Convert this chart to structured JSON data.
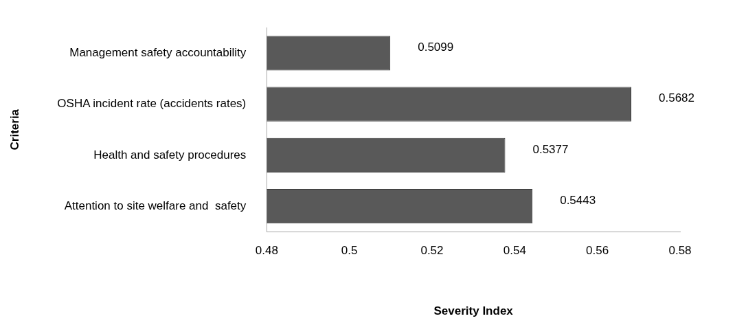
{
  "chart_data": {
    "type": "bar",
    "orientation": "horizontal",
    "xlabel": "Severity Index",
    "ylabel": "Criteria",
    "categories": [
      "Management safety accountability",
      "OSHA incident rate (accidents rates)",
      "Health and safety procedures",
      "Attention to site welfare and  safety"
    ],
    "values": [
      0.5099,
      0.5682,
      0.5377,
      0.5443
    ],
    "color": "#595959",
    "xlim": [
      0.48,
      0.58
    ],
    "xticks": [
      0.48,
      0.5,
      0.52,
      0.54,
      0.56,
      0.58
    ],
    "data_labels": true,
    "grid": false,
    "legend": false
  }
}
